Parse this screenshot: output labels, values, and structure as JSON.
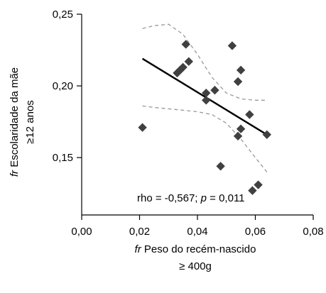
{
  "chart_data": {
    "type": "scatter",
    "xlabel": {
      "prefix": "fr",
      "line1": " Peso do recém-nascido",
      "line2": "≥ 400g"
    },
    "ylabel": {
      "prefix": "fr",
      "line1": " Escolaridade da mãe",
      "line2": "≥12 anos"
    },
    "xlim": [
      0.0,
      0.08
    ],
    "ylim": [
      0.11,
      0.25
    ],
    "xticks": [
      0.0,
      0.02,
      0.04,
      0.06,
      0.08
    ],
    "xtick_labels": [
      "0,00",
      "0,02",
      "0,04",
      "0,06",
      "0,08"
    ],
    "yticks": [
      0.15,
      0.2,
      0.25
    ],
    "ytick_labels": [
      "0,15",
      "0,20",
      "0,25"
    ],
    "grid": false,
    "annotation": {
      "rho_text": "rho = -0,567; ",
      "p_symbol": "p",
      "p_text": " = 0,011"
    },
    "marker_color": "#404040",
    "points": [
      {
        "x": 0.021,
        "y": 0.171
      },
      {
        "x": 0.033,
        "y": 0.209
      },
      {
        "x": 0.034,
        "y": 0.211
      },
      {
        "x": 0.035,
        "y": 0.213
      },
      {
        "x": 0.036,
        "y": 0.229
      },
      {
        "x": 0.037,
        "y": 0.217
      },
      {
        "x": 0.043,
        "y": 0.195
      },
      {
        "x": 0.043,
        "y": 0.19
      },
      {
        "x": 0.046,
        "y": 0.197
      },
      {
        "x": 0.048,
        "y": 0.144
      },
      {
        "x": 0.052,
        "y": 0.228
      },
      {
        "x": 0.054,
        "y": 0.203
      },
      {
        "x": 0.055,
        "y": 0.211
      },
      {
        "x": 0.054,
        "y": 0.165
      },
      {
        "x": 0.055,
        "y": 0.17
      },
      {
        "x": 0.058,
        "y": 0.18
      },
      {
        "x": 0.059,
        "y": 0.127
      },
      {
        "x": 0.061,
        "y": 0.131
      },
      {
        "x": 0.064,
        "y": 0.166
      }
    ],
    "regression_line": {
      "x": [
        0.021,
        0.064
      ],
      "y": [
        0.219,
        0.166
      ],
      "color": "#000000"
    },
    "ci_upper": {
      "x": [
        0.021,
        0.025,
        0.03,
        0.035,
        0.04,
        0.045,
        0.05,
        0.055,
        0.06,
        0.064
      ],
      "y": [
        0.24,
        0.242,
        0.243,
        0.236,
        0.222,
        0.206,
        0.195,
        0.191,
        0.19,
        0.19
      ],
      "color": "#999999"
    },
    "ci_lower": {
      "x": [
        0.021,
        0.025,
        0.03,
        0.035,
        0.04,
        0.045,
        0.05,
        0.055,
        0.06,
        0.064
      ],
      "y": [
        0.186,
        0.185,
        0.184,
        0.183,
        0.182,
        0.18,
        0.174,
        0.163,
        0.15,
        0.14
      ],
      "color": "#999999"
    }
  }
}
